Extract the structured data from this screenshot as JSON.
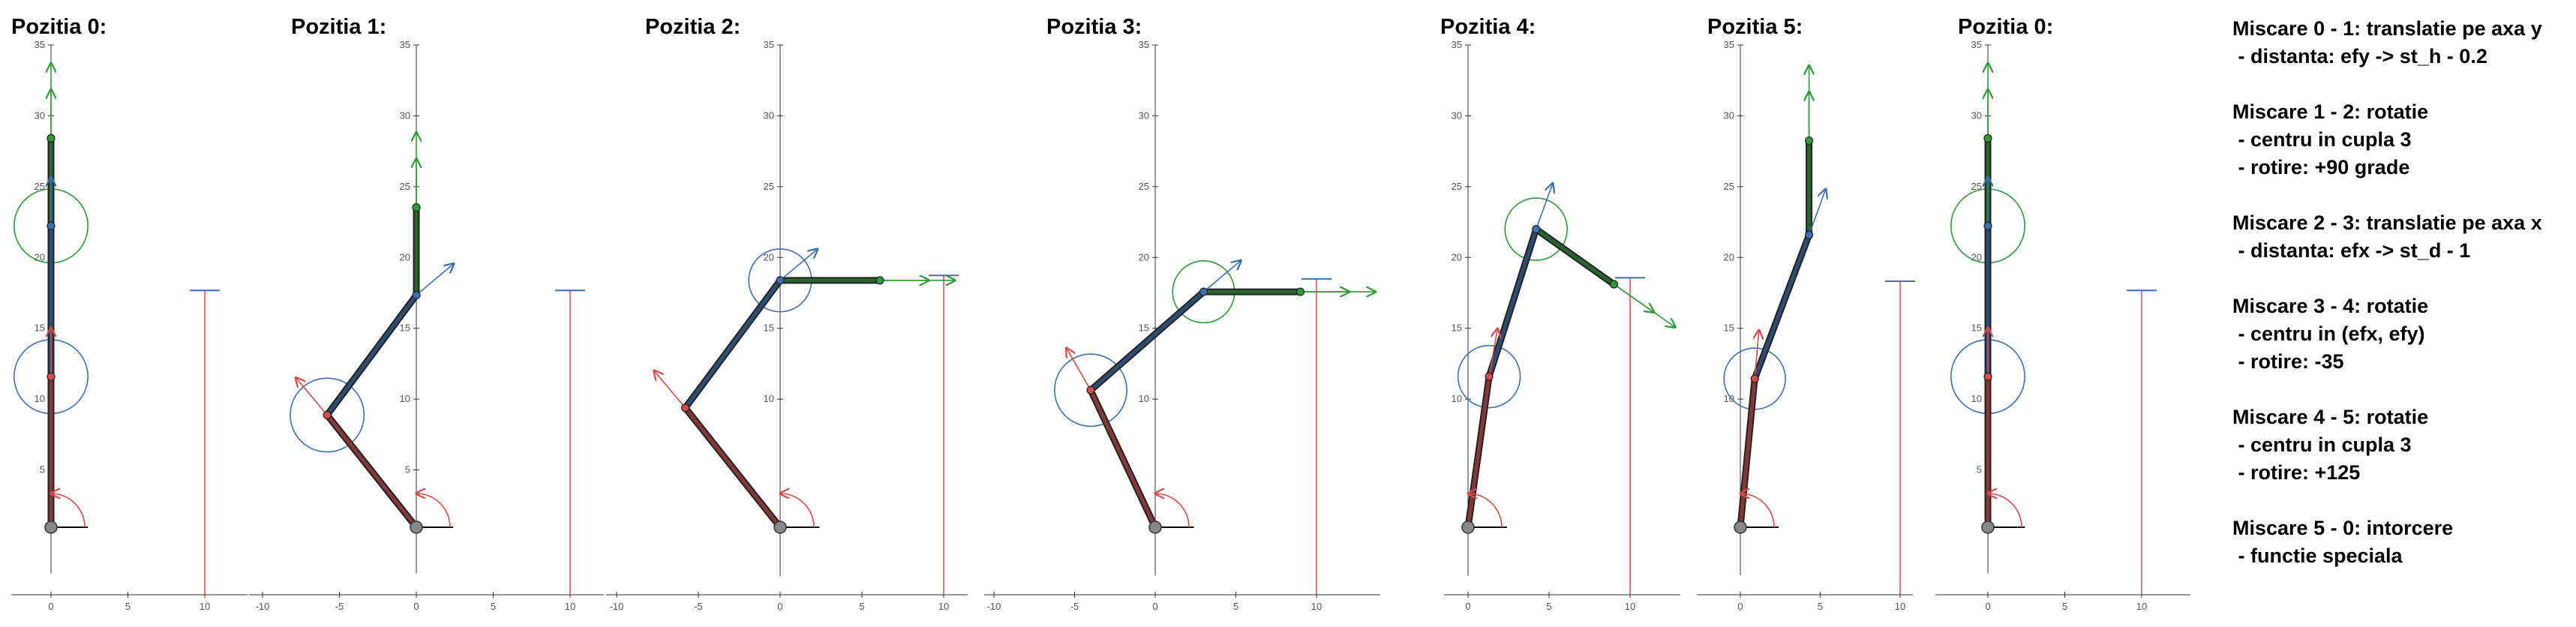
{
  "colors": {
    "link1": "#d94b4b",
    "link2": "#3b6fb6",
    "link3": "#2f9a3a",
    "target": "#d94b4b",
    "axis": "#333333",
    "joint_fill": "#888888"
  },
  "panels": [
    {
      "title": "Pozitia 0:",
      "yticks": [
        "5",
        "10",
        "15",
        "20",
        "25",
        "30",
        "35"
      ],
      "xticks": [
        "0",
        "5",
        "10"
      ],
      "joints": [
        [
          0,
          0
        ],
        [
          0,
          9.8
        ],
        [
          0,
          19.6
        ],
        [
          0,
          25.3
        ]
      ],
      "frames": [
        [
          0,
          0,
          90
        ],
        [
          0,
          9.8,
          90
        ],
        [
          0,
          19.6,
          90
        ],
        [
          0,
          25.3,
          90
        ]
      ],
      "circles": [
        [
          0,
          9.8,
          3
        ],
        [
          0,
          19.6,
          3
        ]
      ],
      "target": {
        "x": 10,
        "y": 15.4
      }
    },
    {
      "title": "Pozitia 1:",
      "yticks": [
        "5",
        "10",
        "15",
        "20",
        "25",
        "30",
        "35"
      ],
      "xticks": [
        "-10",
        "-5",
        "0",
        "5",
        "10"
      ],
      "joints": [
        [
          0,
          0
        ],
        [
          -5.8,
          7.3
        ],
        [
          0,
          15.1
        ],
        [
          0,
          20.8
        ]
      ],
      "frames": [
        [
          0,
          0,
          90
        ],
        [
          -5.8,
          7.3,
          130
        ],
        [
          0,
          15.1,
          40
        ],
        [
          0,
          20.8,
          90
        ]
      ],
      "circles": [
        [
          -5.8,
          7.3,
          3
        ]
      ],
      "target": {
        "x": 10,
        "y": 15.4
      }
    },
    {
      "title": "Pozitia 2:",
      "yticks": [
        "10",
        "15",
        "20",
        "25",
        "30",
        "35"
      ],
      "xticks": [
        "-10",
        "-5",
        "0",
        "5",
        "10"
      ],
      "joints": [
        [
          0,
          0
        ],
        [
          -5.8,
          7.3
        ],
        [
          0,
          15.1
        ],
        [
          6.1,
          15.1
        ]
      ],
      "frames": [
        [
          0,
          0,
          90
        ],
        [
          -5.8,
          7.3,
          130
        ],
        [
          0,
          15.1,
          40
        ],
        [
          6.1,
          15.1,
          0
        ]
      ],
      "circles": [
        [
          0,
          15.1,
          2.4
        ]
      ],
      "target": {
        "x": 10,
        "y": 15.4
      }
    },
    {
      "title": "Pozitia 3:",
      "yticks": [
        "10",
        "15",
        "20",
        "25",
        "30",
        "35"
      ],
      "xticks": [
        "-10",
        "-5",
        "0",
        "5",
        "10"
      ],
      "joints": [
        [
          0,
          0
        ],
        [
          -4,
          8.5
        ],
        [
          3,
          14.6
        ],
        [
          9,
          14.6
        ]
      ],
      "frames": [
        [
          0,
          0,
          90
        ],
        [
          -4,
          8.5,
          120
        ],
        [
          3,
          14.6,
          40
        ],
        [
          9,
          14.6,
          0
        ]
      ],
      "circles": [
        [
          -4,
          8.5,
          2.8
        ],
        [
          3,
          14.6,
          2.4
        ]
      ],
      "target": {
        "x": 10,
        "y": 15.4
      }
    },
    {
      "title": "Pozitia 4:",
      "yticks": [
        "10",
        "15",
        "20",
        "25",
        "30",
        "35"
      ],
      "xticks": [
        "0",
        "5",
        "10"
      ],
      "joints": [
        [
          0,
          0
        ],
        [
          1.3,
          9.3
        ],
        [
          4.2,
          18.4
        ],
        [
          9,
          15
        ]
      ],
      "frames": [
        [
          0,
          0,
          90
        ],
        [
          1.3,
          9.3,
          80
        ],
        [
          4.2,
          18.4,
          70
        ],
        [
          9,
          15,
          -35
        ]
      ],
      "circles": [
        [
          1.3,
          9.3,
          2.4
        ],
        [
          4.2,
          18.4,
          2.4
        ]
      ],
      "target": {
        "x": 10,
        "y": 15.4
      }
    },
    {
      "title": "Pozitia 5:",
      "yticks": [
        "10",
        "15",
        "20",
        "25",
        "30",
        "35"
      ],
      "xticks": [
        "0",
        "5",
        "10"
      ],
      "joints": [
        [
          0,
          0
        ],
        [
          0.9,
          9.3
        ],
        [
          4.3,
          18.3
        ],
        [
          4.3,
          24.2
        ]
      ],
      "frames": [
        [
          0,
          0,
          90
        ],
        [
          0.9,
          9.3,
          85
        ],
        [
          4.3,
          18.3,
          70
        ],
        [
          4.3,
          24.2,
          90
        ]
      ],
      "circles": [
        [
          0.9,
          9.3,
          2.4
        ]
      ],
      "target": {
        "x": 10,
        "y": 15.4
      }
    },
    {
      "title": "Pozitia 0:",
      "yticks": [
        "5",
        "10",
        "15",
        "20",
        "25",
        "30",
        "35"
      ],
      "xticks": [
        "0",
        "5",
        "10"
      ],
      "joints": [
        [
          0,
          0
        ],
        [
          0,
          9.8
        ],
        [
          0,
          19.6
        ],
        [
          0,
          25.3
        ]
      ],
      "frames": [
        [
          0,
          0,
          90
        ],
        [
          0,
          9.8,
          90
        ],
        [
          0,
          19.6,
          90
        ],
        [
          0,
          25.3,
          90
        ]
      ],
      "circles": [
        [
          0,
          9.8,
          3
        ],
        [
          0,
          19.6,
          3
        ]
      ],
      "target": {
        "x": 10,
        "y": 15.4
      }
    }
  ],
  "notes": [
    {
      "heading": "Miscare 0 - 1: translatie pe axa y",
      "lines": [
        " - distanta: efy -> st_h - 0.2"
      ]
    },
    {
      "heading": "Miscare 1 - 2: rotatie",
      "lines": [
        " - centru in cupla 3",
        " - rotire: +90 grade"
      ]
    },
    {
      "heading": "Miscare 2 - 3: translatie pe axa x",
      "lines": [
        " - distanta: efx -> st_d - 1"
      ]
    },
    {
      "heading": "Miscare 3 - 4: rotatie",
      "lines": [
        " - centru in (efx, efy)",
        " - rotire: -35"
      ]
    },
    {
      "heading": "Miscare 4 - 5: rotatie",
      "lines": [
        " - centru in cupla 3",
        " - rotire: +125"
      ]
    },
    {
      "heading": "Miscare 5 - 0: intorcere",
      "lines": [
        " - functie speciala"
      ]
    }
  ]
}
